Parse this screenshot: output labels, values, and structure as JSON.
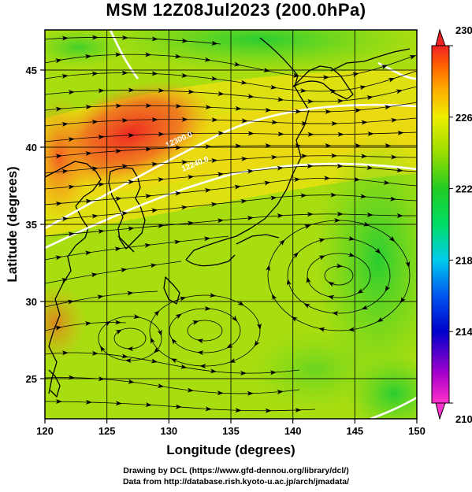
{
  "title": "MSM 12Z08Jul2023 (200.0hPa)",
  "xlabel": "Longitude (degrees)",
  "ylabel": "Latitude  (degrees)",
  "x_ticks": [
    120,
    125,
    130,
    135,
    140,
    145,
    150
  ],
  "y_ticks": [
    25,
    30,
    35,
    40,
    45
  ],
  "lon_range": [
    120,
    150
  ],
  "lat_range": [
    22.4,
    47.6
  ],
  "colorbar": {
    "ticks": [
      210,
      214,
      218,
      222,
      226,
      230
    ],
    "range": [
      210,
      230
    ],
    "colors": [
      "#ff33cc",
      "#aa00cc",
      "#0000cc",
      "#0055ee",
      "#00ccee",
      "#00dd66",
      "#22cc22",
      "#99dd00",
      "#eeee00",
      "#ffaa00",
      "#ff6600",
      "#ee2222"
    ]
  },
  "contour_labels": [
    "12300.0",
    "12240.0"
  ],
  "credits": {
    "line1": "Drawing by DCL (https://www.gfd-dennou.org/library/dcl/)",
    "line2": "Data from http://database.rish.kyoto-u.ac.jp/arch/jmadata/"
  }
}
